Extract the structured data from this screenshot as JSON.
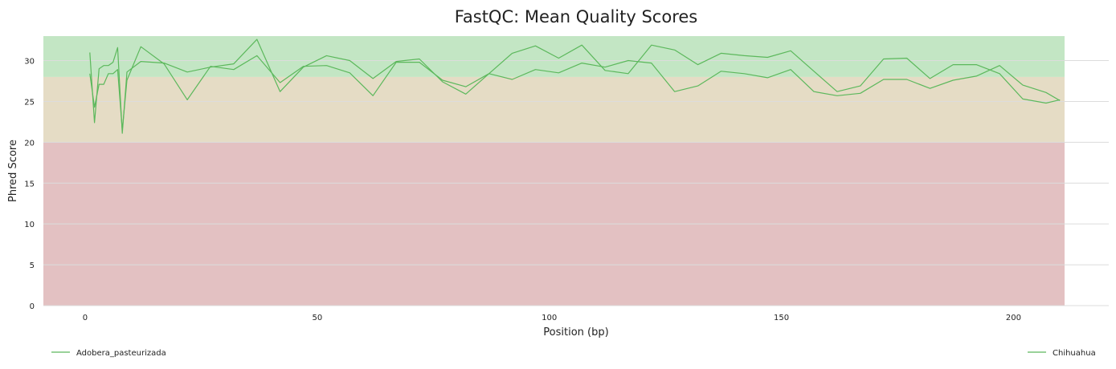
{
  "chart_data": {
    "type": "line",
    "title": "FastQC: Mean Quality Scores",
    "xlabel": "Position (bp)",
    "ylabel": "Phred Score",
    "xlim": [
      -9,
      211
    ],
    "ylim": [
      0,
      33
    ],
    "xticks": [
      0,
      50,
      100,
      150,
      200
    ],
    "yticks": [
      0,
      5,
      10,
      15,
      20,
      25,
      30
    ],
    "grid": true,
    "legend_placement": "bottom",
    "zones": [
      {
        "from": 0,
        "to": 20,
        "color": "#e3c1c2"
      },
      {
        "from": 20,
        "to": 28,
        "color": "#e5dcc5"
      },
      {
        "from": 28,
        "to": 33,
        "color": "#c3e6c4"
      }
    ],
    "series": [
      {
        "name": "Adobera_pasteurizada",
        "color": "#5cb85c",
        "x": [
          1,
          2,
          3,
          4,
          5,
          6,
          7,
          8,
          9,
          12,
          17,
          22,
          27,
          32,
          37,
          42,
          47,
          52,
          57,
          62,
          67,
          72,
          77,
          82,
          87,
          92,
          97,
          102,
          107,
          112,
          117,
          122,
          127,
          132,
          137,
          142,
          147,
          152,
          157,
          162,
          167,
          172,
          177,
          182,
          187,
          192,
          197,
          202,
          207,
          210
        ],
        "y": [
          31.0,
          22.4,
          29.0,
          29.4,
          29.4,
          29.8,
          31.6,
          21.1,
          28.6,
          29.9,
          29.7,
          28.6,
          29.2,
          29.6,
          32.6,
          26.2,
          29.2,
          30.6,
          30.0,
          27.8,
          29.9,
          30.2,
          27.4,
          25.9,
          28.4,
          30.9,
          31.8,
          30.3,
          31.9,
          28.8,
          28.4,
          31.9,
          31.3,
          29.5,
          30.9,
          30.6,
          30.4,
          31.2,
          28.7,
          26.2,
          26.9,
          30.2,
          30.3,
          27.8,
          29.5,
          29.5,
          28.4,
          25.3,
          24.8,
          25.2
        ]
      },
      {
        "name": "Chihuahua",
        "color": "#5cb85c",
        "x": [
          1,
          2,
          3,
          4,
          5,
          6,
          7,
          8,
          9,
          12,
          17,
          22,
          27,
          32,
          37,
          42,
          47,
          52,
          57,
          62,
          67,
          72,
          77,
          82,
          87,
          92,
          97,
          102,
          107,
          112,
          117,
          122,
          127,
          132,
          137,
          142,
          147,
          152,
          157,
          162,
          167,
          172,
          177,
          182,
          187,
          192,
          197,
          202,
          207,
          210
        ],
        "y": [
          28.4,
          24.3,
          27.1,
          27.1,
          28.4,
          28.4,
          28.9,
          21.5,
          27.6,
          31.7,
          29.6,
          25.2,
          29.3,
          28.9,
          30.6,
          27.3,
          29.3,
          29.4,
          28.5,
          25.7,
          29.8,
          29.8,
          27.6,
          26.8,
          28.4,
          27.7,
          28.9,
          28.5,
          29.7,
          29.2,
          30.0,
          29.7,
          26.2,
          26.9,
          28.7,
          28.4,
          27.9,
          28.9,
          26.2,
          25.7,
          26.0,
          27.7,
          27.7,
          26.6,
          27.6,
          28.1,
          29.4,
          27.0,
          26.1,
          25.1
        ]
      }
    ]
  }
}
